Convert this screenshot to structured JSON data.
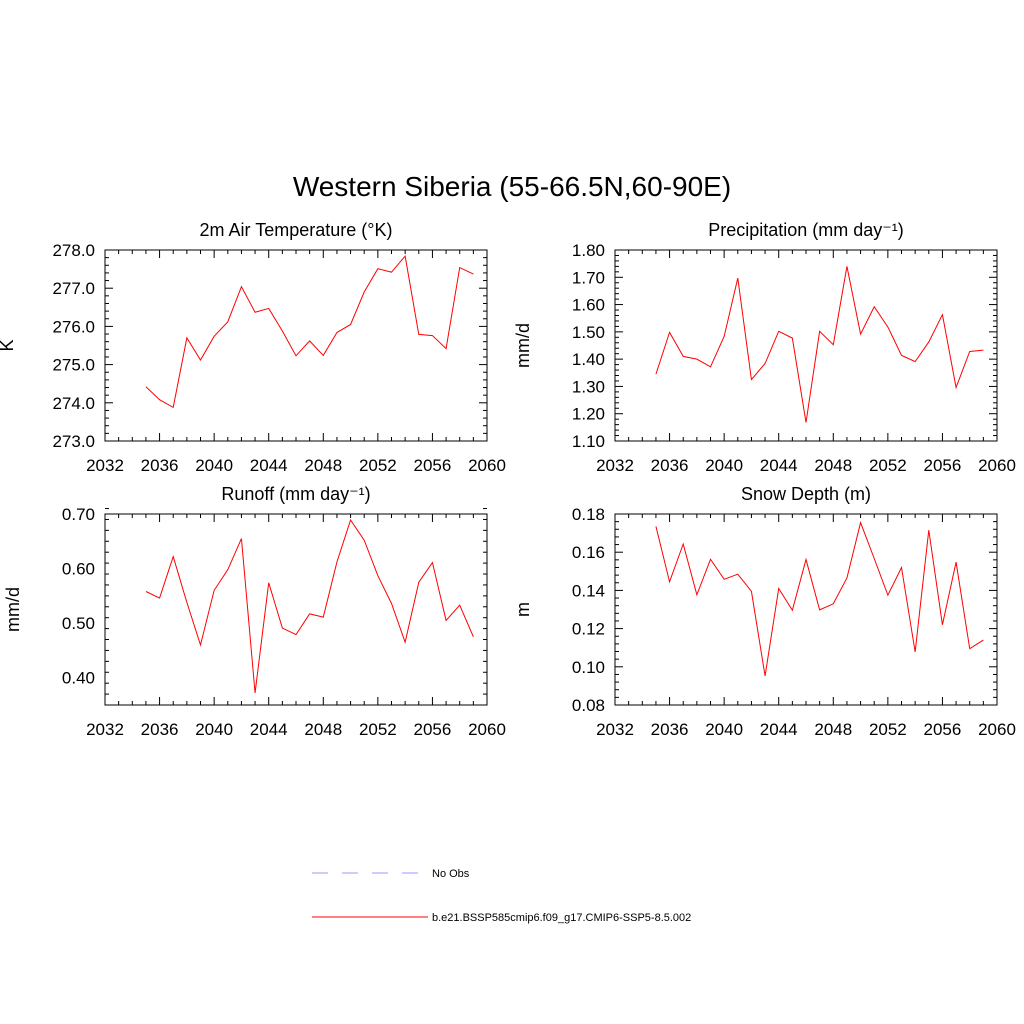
{
  "figure": {
    "title": "Western Siberia (55-66.5N,60-90E)"
  },
  "legend": [
    {
      "label": "No Obs",
      "color": "#9999ff",
      "dash": true
    },
    {
      "label": "b.e21.BSSP585cmip6.f09_g17.CMIP6-SSP5-8.5.002",
      "color": "#ff0000",
      "dash": false
    }
  ],
  "chart_data": [
    {
      "type": "line",
      "title": "2m Air Temperature (°K)",
      "ylabel": "K",
      "xlim": [
        2032,
        2060
      ],
      "ylim": [
        273.0,
        278.0
      ],
      "xticks": [
        "2032",
        "2036",
        "2040",
        "2044",
        "2048",
        "2052",
        "2056",
        "2060"
      ],
      "yticks": [
        "273.0",
        "274.0",
        "275.0",
        "276.0",
        "277.0",
        "278.0"
      ],
      "x": [
        2035,
        2036,
        2037,
        2038,
        2039,
        2040,
        2041,
        2042,
        2043,
        2044,
        2045,
        2046,
        2047,
        2048,
        2049,
        2050,
        2051,
        2052,
        2053,
        2054,
        2055,
        2056,
        2057,
        2058,
        2059
      ],
      "series": [
        {
          "color": "#ff0000",
          "values": [
            274.42,
            274.08,
            273.88,
            275.7,
            275.12,
            275.74,
            276.12,
            277.04,
            276.37,
            276.47,
            275.88,
            275.23,
            275.62,
            275.24,
            275.84,
            276.05,
            276.9,
            277.51,
            277.42,
            277.84,
            275.79,
            275.76,
            275.42,
            277.54,
            277.37
          ]
        }
      ]
    },
    {
      "type": "line",
      "title": "Precipitation (mm day⁻¹)",
      "ylabel": "mm/d",
      "xlim": [
        2032,
        2060
      ],
      "ylim": [
        1.1,
        1.8
      ],
      "xticks": [
        "2032",
        "2036",
        "2040",
        "2044",
        "2048",
        "2052",
        "2056",
        "2060"
      ],
      "yticks": [
        "1.10",
        "1.20",
        "1.30",
        "1.40",
        "1.50",
        "1.60",
        "1.70",
        "1.80"
      ],
      "x": [
        2035,
        2036,
        2037,
        2038,
        2039,
        2040,
        2041,
        2042,
        2043,
        2044,
        2045,
        2046,
        2047,
        2048,
        2049,
        2050,
        2051,
        2052,
        2053,
        2054,
        2055,
        2056,
        2057,
        2058,
        2059
      ],
      "series": [
        {
          "color": "#ff0000",
          "values": [
            1.345,
            1.498,
            1.41,
            1.4,
            1.372,
            1.483,
            1.697,
            1.325,
            1.384,
            1.502,
            1.477,
            1.168,
            1.502,
            1.453,
            1.74,
            1.492,
            1.592,
            1.518,
            1.414,
            1.391,
            1.463,
            1.563,
            1.296,
            1.428,
            1.433
          ]
        }
      ]
    },
    {
      "type": "line",
      "title": "Runoff (mm day⁻¹)",
      "ylabel": "mm/d",
      "xlim": [
        2032,
        2060
      ],
      "ylim": [
        0.35,
        0.7
      ],
      "xticks": [
        "2032",
        "2036",
        "2040",
        "2044",
        "2048",
        "2052",
        "2056",
        "2060"
      ],
      "yticks": [
        "0.40",
        "0.50",
        "0.60",
        "0.70"
      ],
      "x": [
        2035,
        2036,
        2037,
        2038,
        2039,
        2040,
        2041,
        2042,
        2043,
        2044,
        2045,
        2046,
        2047,
        2048,
        2049,
        2050,
        2051,
        2052,
        2053,
        2054,
        2055,
        2056,
        2057,
        2058,
        2059
      ],
      "series": [
        {
          "color": "#ff0000",
          "values": [
            0.558,
            0.546,
            0.622,
            0.538,
            0.46,
            0.56,
            0.598,
            0.655,
            0.372,
            0.574,
            0.491,
            0.479,
            0.517,
            0.511,
            0.612,
            0.689,
            0.652,
            0.587,
            0.536,
            0.465,
            0.575,
            0.611,
            0.505,
            0.533,
            0.475
          ]
        }
      ]
    },
    {
      "type": "line",
      "title": "Snow Depth (m)",
      "ylabel": "m",
      "xlim": [
        2032,
        2060
      ],
      "ylim": [
        0.08,
        0.18
      ],
      "xticks": [
        "2032",
        "2036",
        "2040",
        "2044",
        "2048",
        "2052",
        "2056",
        "2060"
      ],
      "yticks": [
        "0.08",
        "0.10",
        "0.12",
        "0.14",
        "0.16",
        "0.18"
      ],
      "x": [
        2035,
        2036,
        2037,
        2038,
        2039,
        2040,
        2041,
        2042,
        2043,
        2044,
        2045,
        2046,
        2047,
        2048,
        2049,
        2050,
        2051,
        2052,
        2053,
        2054,
        2055,
        2056,
        2057,
        2058,
        2059
      ],
      "series": [
        {
          "color": "#ff0000",
          "values": [
            0.1735,
            0.1445,
            0.1643,
            0.1377,
            0.1563,
            0.1458,
            0.1485,
            0.1395,
            0.0952,
            0.141,
            0.1296,
            0.1562,
            0.1298,
            0.133,
            0.1465,
            0.1755,
            0.1567,
            0.1375,
            0.152,
            0.1078,
            0.1715,
            0.122,
            0.1548,
            0.1095,
            0.114
          ]
        }
      ]
    }
  ]
}
